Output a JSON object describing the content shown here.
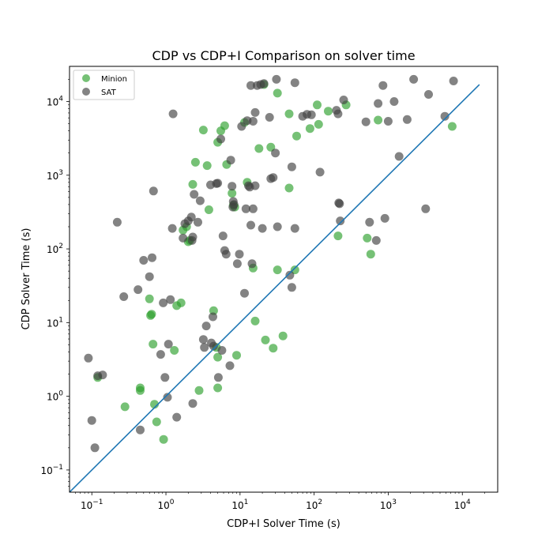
{
  "chart_data": {
    "type": "scatter",
    "title": "CDP vs CDP+I Comparison on solver time",
    "xlabel": "CDP+I Solver Time (s)",
    "ylabel": "CDP Solver Time (s)",
    "x_scale": "log",
    "y_scale": "log",
    "xlim": [
      0.05,
      30000
    ],
    "ylim": [
      0.05,
      30000
    ],
    "grid": false,
    "legend_position": "top-left",
    "x_ticks": [
      {
        "value": 0.1,
        "base": "10",
        "exp": "−1"
      },
      {
        "value": 1,
        "base": "10",
        "exp": "0"
      },
      {
        "value": 10,
        "base": "10",
        "exp": "1"
      },
      {
        "value": 100,
        "base": "10",
        "exp": "2"
      },
      {
        "value": 1000,
        "base": "10",
        "exp": "3"
      },
      {
        "value": 10000,
        "base": "10",
        "exp": "4"
      }
    ],
    "y_ticks": [
      {
        "value": 0.1,
        "base": "10",
        "exp": "−1"
      },
      {
        "value": 1,
        "base": "10",
        "exp": "0"
      },
      {
        "value": 10,
        "base": "10",
        "exp": "1"
      },
      {
        "value": 100,
        "base": "10",
        "exp": "2"
      },
      {
        "value": 1000,
        "base": "10",
        "exp": "3"
      },
      {
        "value": 10000,
        "base": "10",
        "exp": "4"
      }
    ],
    "reference_line": {
      "x": [
        0.05,
        17000
      ],
      "y": [
        0.05,
        17000
      ],
      "color": "#1f77b4"
    },
    "series": [
      {
        "name": "Minion",
        "color": "#2ca02c",
        "points": [
          [
            0.12,
            1.8
          ],
          [
            0.28,
            0.72
          ],
          [
            0.45,
            1.3
          ],
          [
            0.45,
            1.2
          ],
          [
            0.6,
            21
          ],
          [
            0.62,
            12.5
          ],
          [
            0.64,
            13
          ],
          [
            0.67,
            5.1
          ],
          [
            0.7,
            0.78
          ],
          [
            0.75,
            0.45
          ],
          [
            0.93,
            0.26
          ],
          [
            1.3,
            4.2
          ],
          [
            1.4,
            17
          ],
          [
            1.6,
            18.5
          ],
          [
            1.7,
            180
          ],
          [
            1.9,
            200
          ],
          [
            2.0,
            125
          ],
          [
            2.1,
            130
          ],
          [
            2.3,
            750
          ],
          [
            2.5,
            1500
          ],
          [
            2.8,
            1.2
          ],
          [
            3.2,
            4100
          ],
          [
            3.6,
            1350
          ],
          [
            3.8,
            340
          ],
          [
            4.4,
            14.5
          ],
          [
            4.8,
            4.6
          ],
          [
            5.0,
            1.3
          ],
          [
            5.0,
            3.4
          ],
          [
            5.0,
            2800
          ],
          [
            5.5,
            4000
          ],
          [
            6.2,
            4700
          ],
          [
            6.6,
            1400
          ],
          [
            7.8,
            570
          ],
          [
            8.1,
            390
          ],
          [
            8.5,
            370
          ],
          [
            9.0,
            3.6
          ],
          [
            11.5,
            5200
          ],
          [
            12.5,
            800
          ],
          [
            15,
            55
          ],
          [
            16,
            10.5
          ],
          [
            18,
            2300
          ],
          [
            21,
            17000
          ],
          [
            22,
            5.8
          ],
          [
            26,
            2400
          ],
          [
            28,
            4.5
          ],
          [
            32,
            13000
          ],
          [
            32,
            52
          ],
          [
            38,
            6.6
          ],
          [
            46,
            6800
          ],
          [
            46,
            670
          ],
          [
            55,
            52
          ],
          [
            58,
            3400
          ],
          [
            88,
            4300
          ],
          [
            110,
            9000
          ],
          [
            115,
            4900
          ],
          [
            155,
            7400
          ],
          [
            210,
            150
          ],
          [
            270,
            9000
          ],
          [
            520,
            140
          ],
          [
            580,
            85
          ],
          [
            730,
            5600
          ],
          [
            7300,
            4600
          ]
        ]
      },
      {
        "name": "SAT",
        "color": "#404040",
        "points": [
          [
            0.09,
            3.3
          ],
          [
            0.1,
            0.47
          ],
          [
            0.11,
            0.2
          ],
          [
            0.12,
            1.9
          ],
          [
            0.14,
            1.95
          ],
          [
            0.22,
            230
          ],
          [
            0.27,
            22.5
          ],
          [
            0.42,
            28
          ],
          [
            0.45,
            0.35
          ],
          [
            0.5,
            70
          ],
          [
            0.6,
            42
          ],
          [
            0.65,
            76
          ],
          [
            0.68,
            610
          ],
          [
            0.85,
            3.7
          ],
          [
            0.92,
            18.5
          ],
          [
            0.97,
            1.8
          ],
          [
            1.05,
            0.97
          ],
          [
            1.08,
            5.1
          ],
          [
            1.15,
            20.5
          ],
          [
            1.22,
            190
          ],
          [
            1.25,
            6800
          ],
          [
            1.4,
            0.52
          ],
          [
            1.7,
            140
          ],
          [
            1.8,
            220
          ],
          [
            2.0,
            240
          ],
          [
            2.2,
            270
          ],
          [
            2.25,
            130
          ],
          [
            2.3,
            145
          ],
          [
            2.3,
            0.8
          ],
          [
            2.4,
            550
          ],
          [
            2.7,
            230
          ],
          [
            2.9,
            450
          ],
          [
            3.2,
            5.9
          ],
          [
            3.3,
            4.6
          ],
          [
            3.5,
            9.0
          ],
          [
            4.0,
            740
          ],
          [
            4.1,
            5.3
          ],
          [
            4.3,
            12
          ],
          [
            4.4,
            4.8
          ],
          [
            4.8,
            770
          ],
          [
            5.0,
            780
          ],
          [
            5.1,
            1.8
          ],
          [
            5.5,
            3100
          ],
          [
            5.7,
            4.2
          ],
          [
            5.9,
            150
          ],
          [
            6.2,
            95
          ],
          [
            6.5,
            85
          ],
          [
            7.3,
            2.6
          ],
          [
            7.5,
            1600
          ],
          [
            7.8,
            710
          ],
          [
            8.0,
            370
          ],
          [
            8.1,
            440
          ],
          [
            8.3,
            400
          ],
          [
            9.2,
            63
          ],
          [
            9.8,
            85
          ],
          [
            10.5,
            4600
          ],
          [
            11.5,
            25
          ],
          [
            12,
            350
          ],
          [
            12.5,
            5500
          ],
          [
            13,
            720
          ],
          [
            13.5,
            690
          ],
          [
            14,
            16500
          ],
          [
            14,
            210
          ],
          [
            14.5,
            63
          ],
          [
            15,
            5400
          ],
          [
            15,
            350
          ],
          [
            16,
            7100
          ],
          [
            16,
            720
          ],
          [
            17,
            16500
          ],
          [
            19,
            17000
          ],
          [
            20,
            190
          ],
          [
            21,
            17500
          ],
          [
            25,
            6100
          ],
          [
            26,
            900
          ],
          [
            28,
            930
          ],
          [
            30,
            2000
          ],
          [
            31,
            20000
          ],
          [
            32,
            200
          ],
          [
            47,
            44
          ],
          [
            50,
            1300
          ],
          [
            50,
            30
          ],
          [
            55,
            190
          ],
          [
            55,
            18000
          ],
          [
            70,
            6300
          ],
          [
            80,
            6700
          ],
          [
            92,
            6600
          ],
          [
            120,
            1100
          ],
          [
            200,
            7600
          ],
          [
            210,
            6800
          ],
          [
            215,
            420
          ],
          [
            220,
            410
          ],
          [
            225,
            240
          ],
          [
            250,
            10500
          ],
          [
            500,
            5300
          ],
          [
            560,
            230
          ],
          [
            690,
            130
          ],
          [
            730,
            9400
          ],
          [
            850,
            16500
          ],
          [
            900,
            260
          ],
          [
            1000,
            5400
          ],
          [
            1200,
            10000
          ],
          [
            1400,
            1800
          ],
          [
            1800,
            5700
          ],
          [
            2200,
            20000
          ],
          [
            3200,
            350
          ],
          [
            3500,
            12500
          ],
          [
            5800,
            6300
          ],
          [
            7600,
            19000
          ]
        ]
      }
    ]
  }
}
